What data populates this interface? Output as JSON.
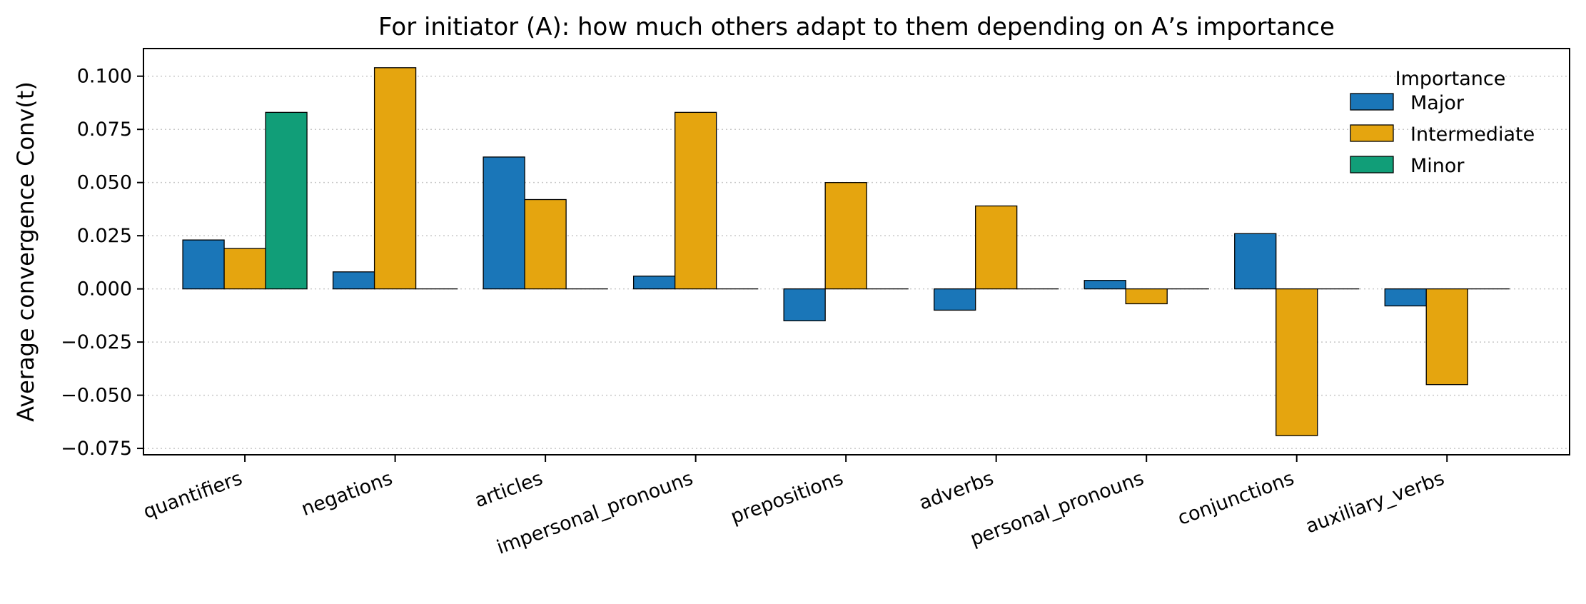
{
  "chart_data": {
    "type": "bar",
    "title": "For initiator (A): how much others adapt to them depending on A’s importance",
    "xlabel": "",
    "ylabel": "Average convergence  Conv(t)",
    "categories": [
      "quantifiers",
      "negations",
      "articles",
      "impersonal_pronouns",
      "prepositions",
      "adverbs",
      "personal_pronouns",
      "conjunctions",
      "auxiliary_verbs"
    ],
    "series": [
      {
        "name": "Major",
        "color": "#1a76b8",
        "values": [
          0.023,
          0.008,
          0.062,
          0.006,
          -0.015,
          -0.01,
          0.004,
          0.026,
          -0.008
        ]
      },
      {
        "name": "Intermediate",
        "color": "#e5a50f",
        "values": [
          0.019,
          0.104,
          0.042,
          0.083,
          0.05,
          0.039,
          -0.007,
          -0.069,
          -0.045
        ]
      },
      {
        "name": "Minor",
        "color": "#119e78",
        "values": [
          0.083,
          0.0,
          0.0,
          0.0,
          0.0,
          0.0,
          0.0,
          0.0,
          0.0
        ]
      }
    ],
    "ylim": [
      -0.078,
      0.113
    ],
    "yticks": [
      0.1,
      0.075,
      0.05,
      0.025,
      0.0,
      -0.025,
      -0.05,
      -0.075
    ],
    "ytick_labels": [
      "0.100",
      "0.075",
      "0.050",
      "0.025",
      "0.000",
      "−0.025",
      "−0.050",
      "−0.075"
    ],
    "grid": "y dotted",
    "legend_title": "Importance",
    "legend_placement": "top-right"
  }
}
